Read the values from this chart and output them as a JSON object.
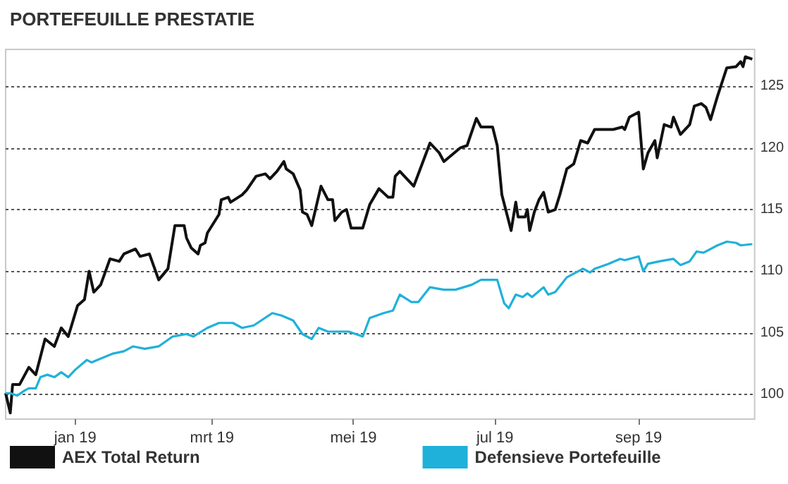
{
  "chart_data": {
    "type": "line",
    "title": "PORTEFEUILLE PRESTATIE",
    "xlim": [
      "2018-12-02",
      "2019-10-21"
    ],
    "xticks": [
      {
        "value": "2019-01-01",
        "label": "jan 19"
      },
      {
        "value": "2019-03-01",
        "label": "mrt 19"
      },
      {
        "value": "2019-05-01",
        "label": "mei 19"
      },
      {
        "value": "2019-07-01",
        "label": "jul 19"
      },
      {
        "value": "2019-09-01",
        "label": "sep 19"
      }
    ],
    "ylim": [
      98,
      128
    ],
    "yticks": [
      100,
      105,
      110,
      115,
      120,
      125
    ],
    "grid": "y",
    "legend": "bottom",
    "marker": "none",
    "line_style": "solid",
    "series": [
      {
        "name": "AEX Total Return",
        "color": "#111111",
        "x": [
          "2018-12-02",
          "2018-12-04",
          "2018-12-05",
          "2018-12-08",
          "2018-12-12",
          "2018-12-15",
          "2018-12-19",
          "2018-12-23",
          "2018-12-26",
          "2018-12-29",
          "2019-01-02",
          "2019-01-05",
          "2019-01-07",
          "2019-01-09",
          "2019-01-12",
          "2019-01-16",
          "2019-01-20",
          "2019-01-22",
          "2019-01-27",
          "2019-01-29",
          "2019-02-02",
          "2019-02-06",
          "2019-02-10",
          "2019-02-13",
          "2019-02-17",
          "2019-02-18",
          "2019-02-20",
          "2019-02-23",
          "2019-02-24",
          "2019-02-26",
          "2019-02-27",
          "2019-03-04",
          "2019-03-05",
          "2019-03-08",
          "2019-03-09",
          "2019-03-14",
          "2019-03-16",
          "2019-03-20",
          "2019-03-24",
          "2019-03-26",
          "2019-03-29",
          "2019-04-01",
          "2019-04-02",
          "2019-04-05",
          "2019-04-08",
          "2019-04-09",
          "2019-04-11",
          "2019-04-13",
          "2019-04-17",
          "2019-04-20",
          "2019-04-22",
          "2019-04-23",
          "2019-04-26",
          "2019-04-28",
          "2019-04-30",
          "2019-05-02",
          "2019-05-05",
          "2019-05-08",
          "2019-05-12",
          "2019-05-16",
          "2019-05-18",
          "2019-05-19",
          "2019-05-21",
          "2019-05-27",
          "2019-06-03",
          "2019-06-07",
          "2019-06-09",
          "2019-06-16",
          "2019-06-19",
          "2019-06-23",
          "2019-06-25",
          "2019-06-30",
          "2019-07-02",
          "2019-07-04",
          "2019-07-08",
          "2019-07-10",
          "2019-07-11",
          "2019-07-14",
          "2019-07-15",
          "2019-07-16",
          "2019-07-18",
          "2019-07-20",
          "2019-07-22",
          "2019-07-24",
          "2019-07-27",
          "2019-07-29",
          "2019-08-01",
          "2019-08-04",
          "2019-08-07",
          "2019-08-10",
          "2019-08-13",
          "2019-08-21",
          "2019-08-25",
          "2019-08-26",
          "2019-08-28",
          "2019-09-01",
          "2019-09-03",
          "2019-09-05",
          "2019-09-08",
          "2019-09-09",
          "2019-09-12",
          "2019-09-15",
          "2019-09-16",
          "2019-09-19",
          "2019-09-23",
          "2019-09-25",
          "2019-09-28",
          "2019-09-30",
          "2019-10-02",
          "2019-10-05",
          "2019-10-09",
          "2019-10-13",
          "2019-10-15",
          "2019-10-16",
          "2019-10-17",
          "2019-10-20"
        ],
        "values": [
          100.1,
          98.5,
          100.8,
          100.8,
          102.2,
          101.6,
          104.5,
          103.9,
          105.4,
          104.7,
          107.2,
          107.7,
          110.0,
          108.3,
          108.9,
          111.0,
          110.8,
          111.4,
          111.8,
          111.2,
          111.4,
          109.3,
          110.2,
          113.7,
          113.7,
          112.7,
          111.9,
          111.4,
          112.1,
          112.3,
          113.1,
          114.6,
          115.8,
          116.0,
          115.6,
          116.2,
          116.6,
          117.7,
          117.9,
          117.5,
          118.1,
          118.9,
          118.3,
          117.9,
          116.6,
          114.8,
          114.6,
          113.7,
          116.9,
          115.8,
          115.8,
          114.1,
          114.8,
          115.0,
          113.5,
          113.5,
          113.5,
          115.4,
          116.7,
          116.0,
          116.0,
          117.7,
          118.1,
          116.9,
          120.4,
          119.6,
          118.9,
          120.0,
          120.2,
          122.4,
          121.7,
          121.7,
          120.2,
          116.2,
          113.3,
          115.6,
          114.4,
          114.4,
          115.0,
          113.3,
          114.8,
          115.8,
          116.4,
          114.8,
          115.0,
          116.2,
          118.3,
          118.7,
          120.6,
          120.4,
          121.5,
          121.5,
          121.7,
          121.5,
          122.5,
          122.9,
          118.3,
          119.6,
          120.6,
          119.2,
          121.9,
          121.7,
          122.5,
          121.1,
          121.9,
          123.4,
          123.6,
          123.3,
          122.3,
          124.2,
          126.5,
          126.6,
          127.0,
          126.6,
          127.4,
          127.2
        ]
      },
      {
        "name": "Defensieve Portefeuille",
        "color": "#1fb1da",
        "x": [
          "2018-12-02",
          "2018-12-04",
          "2018-12-07",
          "2018-12-10",
          "2018-12-12",
          "2018-12-15",
          "2018-12-17",
          "2018-12-20",
          "2018-12-23",
          "2018-12-26",
          "2018-12-29",
          "2019-01-01",
          "2019-01-06",
          "2019-01-08",
          "2019-01-17",
          "2019-01-22",
          "2019-01-26",
          "2019-01-31",
          "2019-02-06",
          "2019-02-12",
          "2019-02-18",
          "2019-02-21",
          "2019-02-27",
          "2019-03-04",
          "2019-03-10",
          "2019-03-14",
          "2019-03-19",
          "2019-03-27",
          "2019-03-31",
          "2019-04-05",
          "2019-04-09",
          "2019-04-13",
          "2019-04-16",
          "2019-04-20",
          "2019-04-24",
          "2019-04-29",
          "2019-05-05",
          "2019-05-08",
          "2019-05-14",
          "2019-05-18",
          "2019-05-21",
          "2019-05-26",
          "2019-05-29",
          "2019-06-03",
          "2019-06-09",
          "2019-06-14",
          "2019-06-21",
          "2019-06-25",
          "2019-07-02",
          "2019-07-05",
          "2019-07-07",
          "2019-07-10",
          "2019-07-13",
          "2019-07-15",
          "2019-07-17",
          "2019-07-22",
          "2019-07-24",
          "2019-07-27",
          "2019-08-01",
          "2019-08-05",
          "2019-08-08",
          "2019-08-11",
          "2019-08-13",
          "2019-08-19",
          "2019-08-24",
          "2019-08-26",
          "2019-09-01",
          "2019-09-03",
          "2019-09-05",
          "2019-09-10",
          "2019-09-16",
          "2019-09-19",
          "2019-09-23",
          "2019-09-26",
          "2019-09-29",
          "2019-10-05",
          "2019-10-09",
          "2019-10-13",
          "2019-10-15",
          "2019-10-20"
        ],
        "values": [
          100.1,
          100.1,
          99.9,
          100.3,
          100.5,
          100.5,
          101.4,
          101.6,
          101.4,
          101.8,
          101.4,
          102.0,
          102.8,
          102.6,
          103.3,
          103.5,
          103.9,
          103.7,
          103.9,
          104.7,
          104.9,
          104.7,
          105.4,
          105.8,
          105.8,
          105.4,
          105.6,
          106.6,
          106.4,
          106.0,
          104.9,
          104.5,
          105.4,
          105.1,
          105.1,
          105.1,
          104.7,
          106.2,
          106.6,
          106.8,
          108.1,
          107.5,
          107.5,
          108.7,
          108.5,
          108.5,
          108.9,
          109.3,
          109.3,
          107.4,
          107.0,
          108.1,
          107.9,
          108.2,
          107.9,
          108.7,
          108.1,
          108.3,
          109.5,
          109.9,
          110.2,
          109.9,
          110.2,
          110.6,
          111.0,
          110.9,
          111.2,
          110.0,
          110.6,
          110.8,
          111.0,
          110.5,
          110.8,
          111.6,
          111.5,
          112.1,
          112.4,
          112.3,
          112.1,
          112.2
        ]
      }
    ]
  }
}
